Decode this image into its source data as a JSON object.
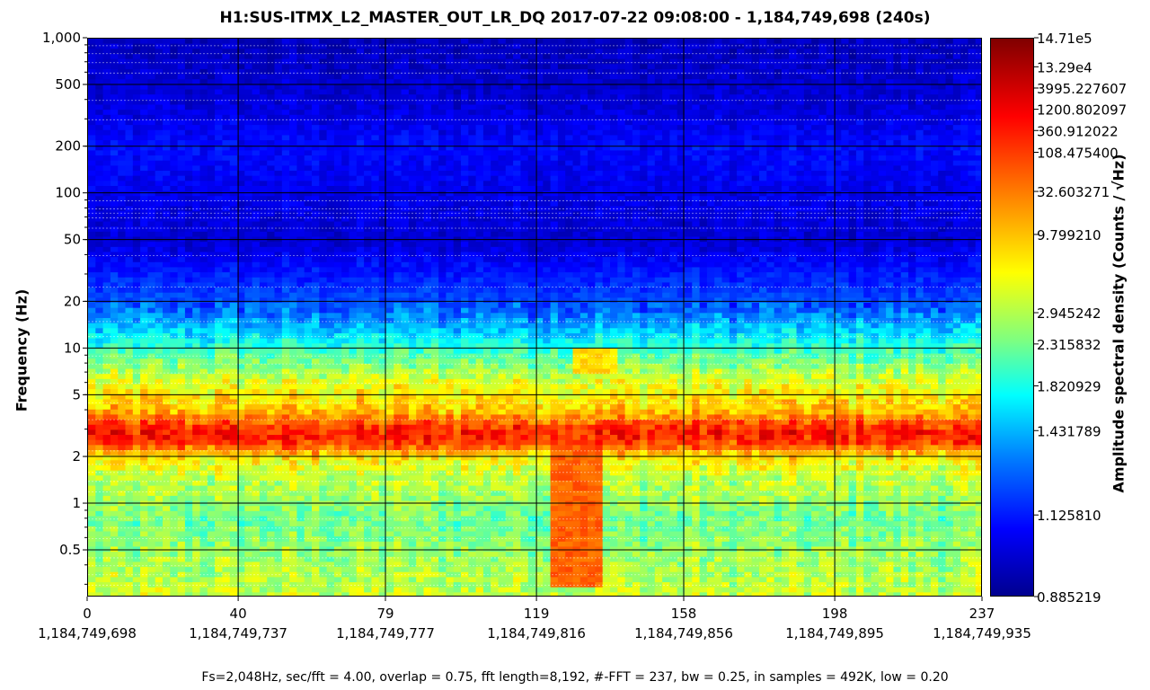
{
  "chart_data": {
    "type": "heatmap",
    "title": "H1:SUS-ITMX_L2_MASTER_OUT_LR_DQ 2017-07-22 09:08:00 - 1,184,749,698 (240s)",
    "ylabel": "Frequency (Hz)",
    "colorbar_label": "Amplitude spectral density (Counts / √Hz)",
    "footer": "Fs=2,048Hz, sec/fft = 4.00, overlap = 0.75, fft length=8,192, #-FFT = 237, bw = 0.25, in samples = 492K, low = 0.20",
    "x_scale": "linear",
    "xlim": [
      0,
      237
    ],
    "x_ticks": [
      {
        "value": 0,
        "label": "0",
        "gps": "1,184,749,698"
      },
      {
        "value": 40,
        "label": "40",
        "gps": "1,184,749,737"
      },
      {
        "value": 79,
        "label": "79",
        "gps": "1,184,749,777"
      },
      {
        "value": 119,
        "label": "119",
        "gps": "1,184,749,816"
      },
      {
        "value": 158,
        "label": "158",
        "gps": "1,184,749,856"
      },
      {
        "value": 198,
        "label": "198",
        "gps": "1,184,749,895"
      },
      {
        "value": 237,
        "label": "237",
        "gps": "1,184,749,935"
      }
    ],
    "y_scale": "log",
    "ylim": [
      0.25,
      1000
    ],
    "y_ticks": [
      {
        "value": 0.5,
        "label": "0.5"
      },
      {
        "value": 1,
        "label": "1"
      },
      {
        "value": 2,
        "label": "2"
      },
      {
        "value": 5,
        "label": "5"
      },
      {
        "value": 10,
        "label": "10"
      },
      {
        "value": 20,
        "label": "20"
      },
      {
        "value": 50,
        "label": "50"
      },
      {
        "value": 100,
        "label": "100"
      },
      {
        "value": 200,
        "label": "200"
      },
      {
        "value": 500,
        "label": "500"
      },
      {
        "value": 1000,
        "label": "1,000"
      }
    ],
    "grid": true,
    "colormap": "jet",
    "colorbar_scale": "nonlinear",
    "colorbar_ticks": [
      {
        "label": "14.71e5",
        "frac": 1.0
      },
      {
        "label": "13.29e4",
        "frac": 0.948
      },
      {
        "label": "3995.227607",
        "frac": 0.91
      },
      {
        "label": "1200.802097",
        "frac": 0.872
      },
      {
        "label": "360.912022",
        "frac": 0.834
      },
      {
        "label": "108.475400",
        "frac": 0.795
      },
      {
        "label": "32.603271",
        "frac": 0.725
      },
      {
        "label": "9.799210",
        "frac": 0.648
      },
      {
        "label": "2.945242",
        "frac": 0.508
      },
      {
        "label": "2.315832",
        "frac": 0.452
      },
      {
        "label": "1.820929",
        "frac": 0.377
      },
      {
        "label": "1.431789",
        "frac": 0.297
      },
      {
        "label": "1.125810",
        "frac": 0.146
      },
      {
        "label": "0.885219",
        "frac": 0.0
      }
    ],
    "spectrum_profile": [
      {
        "freq": 0.25,
        "level": 0.57
      },
      {
        "freq": 0.5,
        "level": 0.52
      },
      {
        "freq": 0.8,
        "level": 0.48
      },
      {
        "freq": 1.0,
        "level": 0.52
      },
      {
        "freq": 1.5,
        "level": 0.56
      },
      {
        "freq": 2.0,
        "level": 0.64
      },
      {
        "freq": 2.4,
        "level": 0.8
      },
      {
        "freq": 2.8,
        "level": 0.86
      },
      {
        "freq": 3.3,
        "level": 0.8
      },
      {
        "freq": 4.0,
        "level": 0.68
      },
      {
        "freq": 6.0,
        "level": 0.6
      },
      {
        "freq": 8.0,
        "level": 0.5
      },
      {
        "freq": 12.0,
        "level": 0.36
      },
      {
        "freq": 16.0,
        "level": 0.26
      },
      {
        "freq": 20.0,
        "level": 0.2
      },
      {
        "freq": 30.0,
        "level": 0.15
      },
      {
        "freq": 50.0,
        "level": 0.08
      },
      {
        "freq": 200,
        "level": 0.13
      },
      {
        "freq": 350,
        "level": 0.09
      },
      {
        "freq": 1000,
        "level": 0.06
      }
    ],
    "features": [
      {
        "t0": 122,
        "t1": 136,
        "f0": 0.3,
        "f1": 2.4,
        "level": 0.78
      },
      {
        "t0": 55,
        "t1": 63,
        "f0": 2.3,
        "f1": 3.5,
        "level": 0.62
      },
      {
        "t0": 128,
        "t1": 140,
        "f0": 7.0,
        "f1": 10.0,
        "level": 0.66
      }
    ],
    "lines_hz": [
      0.3,
      0.35,
      0.4,
      0.45,
      0.6,
      0.7,
      0.8,
      1.2,
      1.4,
      1.6,
      1.8,
      2.2,
      3.5,
      4.5,
      6,
      7,
      8,
      9,
      12,
      15,
      25,
      40,
      60,
      70,
      75,
      80,
      90,
      300,
      400,
      600,
      700,
      800,
      900
    ]
  }
}
